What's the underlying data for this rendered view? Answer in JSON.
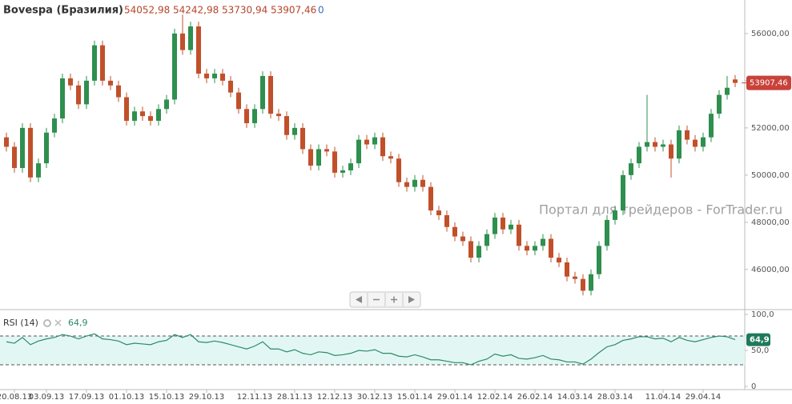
{
  "chart_data": [
    {
      "type": "candlestick",
      "title": "Bovespa (Бразилия)",
      "legend_values": [
        "54052,98",
        "54242,98",
        "53730,94",
        "53907,46",
        "0"
      ],
      "watermark": "Портал для трейдеров - ForTrader.ru",
      "up_color": "#2f8f4e",
      "down_color": "#c1502a",
      "categories": [
        null,
        "20.08.13",
        null,
        null,
        null,
        "03.09.13",
        null,
        null,
        null,
        null,
        "17.09.13",
        null,
        null,
        null,
        null,
        "01.10.13",
        null,
        null,
        null,
        null,
        "15.10.13",
        null,
        null,
        null,
        null,
        "29.10.13",
        null,
        null,
        null,
        null,
        null,
        "12.11.13",
        null,
        null,
        null,
        null,
        "28.11.13",
        null,
        null,
        null,
        null,
        "12.12.13",
        null,
        null,
        null,
        null,
        "30.12.13",
        null,
        null,
        null,
        null,
        "15.01.14",
        null,
        null,
        null,
        null,
        "29.01.14",
        null,
        null,
        null,
        null,
        "12.02.14",
        null,
        null,
        null,
        null,
        "26.02.14",
        null,
        null,
        null,
        null,
        "14.03.14",
        null,
        null,
        null,
        null,
        "28.03.14",
        null,
        null,
        null,
        null,
        null,
        "11.04.14",
        null,
        null,
        null,
        null,
        "29.04.14",
        null,
        null,
        null,
        null
      ],
      "open": [
        51600,
        51200,
        50300,
        52000,
        49900,
        50500,
        51800,
        52400,
        54100,
        53800,
        53000,
        54000,
        55500,
        54000,
        53800,
        53300,
        52300,
        52700,
        52500,
        52300,
        52800,
        53200,
        56000,
        55300,
        56300,
        54300,
        54100,
        54300,
        54000,
        53500,
        52800,
        52200,
        52800,
        54200,
        52600,
        52500,
        51700,
        52000,
        51100,
        50400,
        51100,
        51000,
        50100,
        50200,
        50500,
        51500,
        51300,
        51600,
        50800,
        50700,
        49700,
        49500,
        49800,
        49500,
        48500,
        48300,
        47800,
        47400,
        47200,
        46500,
        47000,
        47500,
        48200,
        47700,
        47900,
        47000,
        46800,
        47000,
        47300,
        46500,
        46300,
        45700,
        45600,
        45100,
        45800,
        47000,
        48100,
        48500,
        50000,
        50500,
        51200,
        51400,
        51200,
        51300,
        50700,
        51900,
        51500,
        51200,
        51600,
        52600,
        53400,
        54052.98
      ],
      "high": [
        51800,
        51400,
        52200,
        52200,
        50700,
        52000,
        52600,
        54300,
        54300,
        54000,
        54200,
        55700,
        55700,
        54200,
        54000,
        53500,
        52900,
        52900,
        52700,
        53000,
        53400,
        56200,
        56800,
        56500,
        56500,
        54500,
        54500,
        54500,
        54200,
        53700,
        53000,
        53000,
        54400,
        54400,
        52800,
        52700,
        52200,
        52200,
        51300,
        51300,
        51300,
        51200,
        50400,
        50700,
        51700,
        51700,
        51800,
        51800,
        51000,
        50900,
        49900,
        50000,
        50000,
        49700,
        48700,
        48500,
        48000,
        47600,
        47400,
        47200,
        47700,
        48400,
        48400,
        48100,
        48100,
        47200,
        47200,
        47500,
        47500,
        46700,
        46500,
        45900,
        45800,
        46000,
        47200,
        48300,
        48700,
        50200,
        50700,
        51400,
        53400,
        51600,
        51500,
        51500,
        52100,
        52100,
        51700,
        51800,
        52800,
        53600,
        54200,
        54242.98
      ],
      "low": [
        51000,
        50100,
        50100,
        49700,
        49700,
        50300,
        51600,
        52200,
        53600,
        52800,
        52800,
        53800,
        53800,
        53600,
        53100,
        52100,
        52100,
        52300,
        52100,
        52100,
        52600,
        53000,
        55100,
        55100,
        54100,
        53900,
        53900,
        53800,
        53300,
        52600,
        52000,
        52000,
        52600,
        52400,
        52300,
        51500,
        51500,
        50900,
        50200,
        50200,
        50800,
        49900,
        49900,
        50000,
        50300,
        51100,
        51100,
        50600,
        50500,
        49500,
        49300,
        49300,
        49300,
        48300,
        48100,
        47600,
        47200,
        47000,
        46300,
        46300,
        46800,
        47300,
        47500,
        47500,
        46800,
        46600,
        46600,
        46800,
        46300,
        46100,
        45500,
        45400,
        44900,
        44900,
        45600,
        46800,
        47900,
        48300,
        49800,
        50300,
        51000,
        51000,
        51000,
        49900,
        50500,
        51300,
        51000,
        51000,
        51400,
        52400,
        53200,
        53730.94
      ],
      "close": [
        51200,
        50300,
        52000,
        49900,
        50500,
        51800,
        52400,
        54100,
        53800,
        53000,
        54000,
        55500,
        54000,
        53800,
        53300,
        52300,
        52700,
        52500,
        52300,
        52800,
        53200,
        56000,
        55300,
        56300,
        54300,
        54100,
        54300,
        54000,
        53500,
        52800,
        52200,
        52800,
        54200,
        52600,
        52500,
        51700,
        52000,
        51100,
        50400,
        51100,
        51000,
        50100,
        50200,
        50500,
        51500,
        51300,
        51600,
        50800,
        50700,
        49700,
        49500,
        49800,
        49500,
        48500,
        48300,
        47800,
        47400,
        47200,
        46500,
        47000,
        47500,
        48200,
        47700,
        47900,
        47000,
        46800,
        47000,
        47300,
        46500,
        46300,
        45700,
        45600,
        45100,
        45800,
        47000,
        48100,
        48500,
        50000,
        50500,
        51200,
        51400,
        51200,
        51300,
        50700,
        51900,
        51500,
        51200,
        51600,
        52600,
        53400,
        53700,
        53907.46
      ],
      "ylim": [
        44300,
        57420
      ],
      "yticks": [
        {
          "value": 46000,
          "label": "46000,00"
        },
        {
          "value": 48000,
          "label": "48000,00"
        },
        {
          "value": 50000,
          "label": "50000,00"
        },
        {
          "value": 52000,
          "label": "52000,00"
        },
        {
          "value": 54000,
          "label": "54000,00"
        },
        {
          "value": 56000,
          "label": "56000,00"
        }
      ]
    },
    {
      "type": "line",
      "title": "RSI (14)",
      "value_label": "64,9",
      "color": "#2d8a6a",
      "band_color": "#e2f7f3",
      "values": [
        62,
        60,
        68,
        58,
        63,
        66,
        68,
        72,
        70,
        66,
        70,
        73,
        66,
        65,
        63,
        58,
        60,
        59,
        58,
        62,
        64,
        72,
        68,
        72,
        62,
        61,
        63,
        61,
        58,
        55,
        52,
        56,
        62,
        52,
        52,
        48,
        51,
        46,
        44,
        48,
        47,
        43,
        44,
        46,
        50,
        49,
        51,
        46,
        46,
        42,
        41,
        44,
        41,
        37,
        37,
        35,
        33,
        33,
        30,
        35,
        38,
        45,
        42,
        44,
        39,
        38,
        40,
        43,
        38,
        37,
        34,
        34,
        31,
        38,
        47,
        55,
        58,
        64,
        66,
        69,
        69,
        66,
        67,
        62,
        68,
        64,
        62,
        65,
        68,
        70,
        69,
        64.9
      ],
      "bands": [
        30,
        70
      ],
      "ylim": [
        -4.4,
        106.7
      ],
      "yticks": [
        0,
        {
          "value": 50,
          "label": "50,0"
        },
        {
          "value": 100,
          "label": "100,0"
        }
      ]
    }
  ]
}
